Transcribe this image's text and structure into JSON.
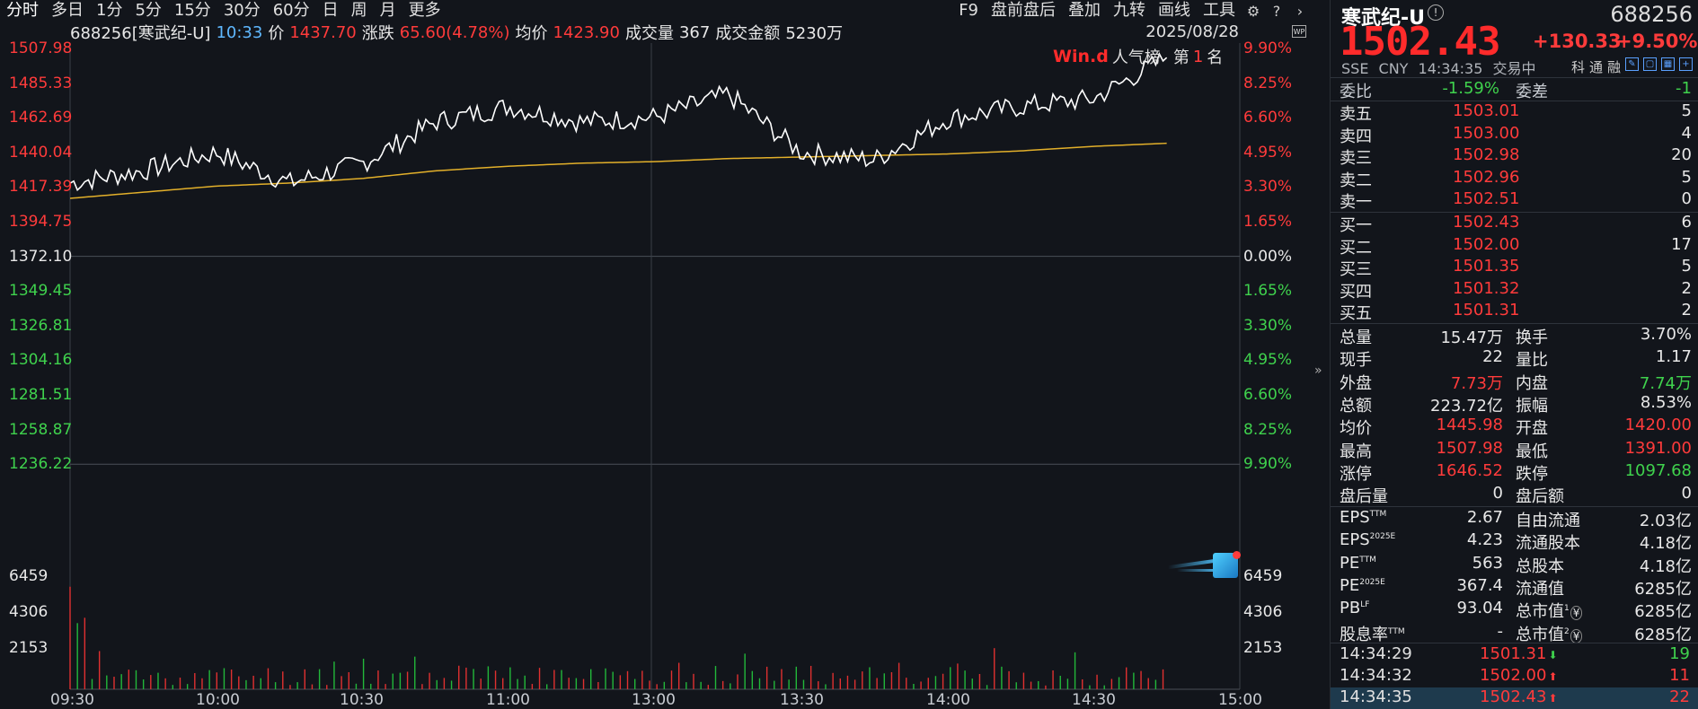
{
  "toolbar": {
    "tabs": [
      "分时",
      "多日",
      "1分",
      "5分",
      "15分",
      "30分",
      "60分",
      "日",
      "周",
      "月",
      "更多"
    ],
    "right": [
      "F9",
      "盘前盘后",
      "叠加",
      "九转",
      "画线",
      "工具"
    ]
  },
  "info": {
    "code_name": "688256[寒武纪-U]",
    "time": "10:33",
    "price_label": "价",
    "price": "1437.70",
    "chg_label": "涨跌",
    "chg": "65.60(4.78%)",
    "avg_label": "均价",
    "avg": "1423.90",
    "vol_label": "成交量",
    "vol": "367",
    "amt_label": "成交金额",
    "amt": "5230万",
    "date": "2025/08/28",
    "wp": "WP"
  },
  "rank": {
    "brand": "Win.d",
    "label": "人气榜",
    "prefix": "第",
    "num": "1",
    "suffix": "名"
  },
  "axis": {
    "left": [
      "1507.98",
      "1485.33",
      "1462.69",
      "1440.04",
      "1417.39",
      "1394.75",
      "1372.10",
      "1349.45",
      "1326.81",
      "1304.16",
      "1281.51",
      "1258.87",
      "1236.22"
    ],
    "right": [
      "9.90%",
      "8.25%",
      "6.60%",
      "4.95%",
      "3.30%",
      "1.65%",
      "0.00%",
      "1.65%",
      "3.30%",
      "4.95%",
      "6.60%",
      "8.25%",
      "9.90%"
    ],
    "vol_left": [
      "6459",
      "4306",
      "2153"
    ],
    "vol_right": [
      "6459",
      "4306",
      "2153"
    ],
    "times": [
      "09:30",
      "10:00",
      "10:30",
      "11:00",
      "13:00",
      "13:30",
      "14:00",
      "14:30",
      "15:00"
    ]
  },
  "chart_data": {
    "type": "line",
    "x": [
      "09:30",
      "09:45",
      "10:00",
      "10:15",
      "10:30",
      "10:45",
      "11:00",
      "11:15",
      "11:30/13:00",
      "13:15",
      "13:30",
      "13:45",
      "14:00",
      "14:15",
      "14:30",
      "14:35"
    ],
    "series": [
      {
        "values": [
          1420,
          1428,
          1440,
          1420,
          1433,
          1460,
          1470,
          1460,
          1463,
          1478,
          1440,
          1435,
          1462,
          1470,
          1475,
          1502
        ]
      },
      {
        "values": [
          1410,
          1414,
          1418,
          1420,
          1423,
          1428,
          1431,
          1433,
          1434,
          1436,
          1437,
          1438,
          1439,
          1441,
          1444,
          1446
        ]
      }
    ],
    "ylim": [
      1236.22,
      1507.98
    ],
    "pre_close": 1372.1
  },
  "panel": {
    "name": "寒武纪-U",
    "code": "688256",
    "price": "1502.43",
    "chg": "+130.33",
    "pct": "+9.50%",
    "exchange": "SSE",
    "currency": "CNY",
    "clock": "14:34:35",
    "status": "交易中",
    "tools": [
      "科",
      "通",
      "融"
    ],
    "webi": "委比",
    "webi_v": "-1.59%",
    "weicha": "委差",
    "weicha_v": "-1",
    "asks": [
      {
        "label": "卖五",
        "price": "1503.01",
        "vol": "5"
      },
      {
        "label": "卖四",
        "price": "1503.00",
        "vol": "4"
      },
      {
        "label": "卖三",
        "price": "1502.98",
        "vol": "20"
      },
      {
        "label": "卖二",
        "price": "1502.96",
        "vol": "5"
      },
      {
        "label": "卖一",
        "price": "1502.51",
        "vol": "0"
      }
    ],
    "bids": [
      {
        "label": "买一",
        "price": "1502.43",
        "vol": "6"
      },
      {
        "label": "买二",
        "price": "1502.00",
        "vol": "17"
      },
      {
        "label": "买三",
        "price": "1501.35",
        "vol": "5"
      },
      {
        "label": "买四",
        "price": "1501.32",
        "vol": "2"
      },
      {
        "label": "买五",
        "price": "1501.31",
        "vol": "2"
      }
    ],
    "stats": [
      {
        "l": "总量",
        "v": "15.47万",
        "vc": "white",
        "l2": "换手",
        "v2": "3.70%",
        "v2c": "white"
      },
      {
        "l": "现手",
        "v": "22",
        "vc": "white",
        "l2": "量比",
        "v2": "1.17",
        "v2c": "white"
      },
      {
        "l": "外盘",
        "v": "7.73万",
        "vc": "red",
        "l2": "内盘",
        "v2": "7.74万",
        "v2c": "green"
      },
      {
        "l": "总额",
        "v": "223.72亿",
        "vc": "white",
        "l2": "振幅",
        "v2": "8.53%",
        "v2c": "white"
      },
      {
        "l": "均价",
        "v": "1445.98",
        "vc": "red",
        "l2": "开盘",
        "v2": "1420.00",
        "v2c": "red"
      },
      {
        "l": "最高",
        "v": "1507.98",
        "vc": "red",
        "l2": "最低",
        "v2": "1391.00",
        "v2c": "red"
      },
      {
        "l": "涨停",
        "v": "1646.52",
        "vc": "red",
        "l2": "跌停",
        "v2": "1097.68",
        "v2c": "green"
      },
      {
        "l": "盘后量",
        "v": "0",
        "vc": "white",
        "l2": "盘后额",
        "v2": "0",
        "v2c": "white"
      }
    ],
    "fin": [
      {
        "l": "EPS",
        "s": "TTM",
        "v": "2.67",
        "l2": "自由流通",
        "s2": "",
        "v2": "2.03亿"
      },
      {
        "l": "EPS",
        "s": "2025E",
        "v": "4.23",
        "l2": "流通股本",
        "s2": "",
        "v2": "4.18亿"
      },
      {
        "l": "PE",
        "s": "TTM",
        "v": "563",
        "l2": "总股本",
        "s2": "",
        "v2": "4.18亿"
      },
      {
        "l": "PE",
        "s": "2025E",
        "v": "367.4",
        "l2": "流通值",
        "s2": "",
        "v2": "6285亿"
      },
      {
        "l": "PB",
        "s": "LF",
        "v": "93.04",
        "l2": "总市值",
        "s2": "1",
        "v2": "6285亿"
      },
      {
        "l": "股息率",
        "s": "TTM",
        "v": "-",
        "l2": "总市值",
        "s2": "2",
        "v2": "6285亿"
      }
    ],
    "ticks": [
      {
        "t": "14:34:29",
        "p": "1501.31",
        "dir": "down",
        "v": "19"
      },
      {
        "t": "14:34:32",
        "p": "1502.00",
        "dir": "up",
        "v": "11"
      },
      {
        "t": "14:34:35",
        "p": "1502.43",
        "dir": "up",
        "v": "22"
      }
    ]
  }
}
